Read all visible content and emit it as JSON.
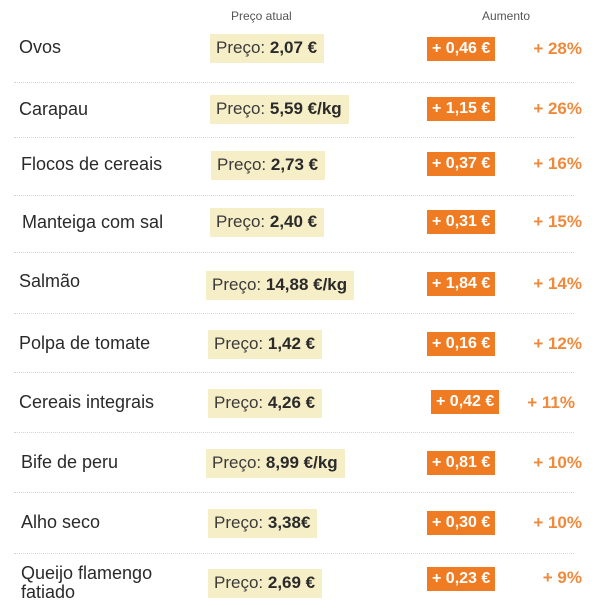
{
  "headers": {
    "price": "Preço atual",
    "increase": "Aumento"
  },
  "price_label": "Preço: ",
  "colors": {
    "price_bg": "#f6eec7",
    "increase_bg": "#ef7b22",
    "percent_text": "#ef8a3d"
  },
  "rows": [
    {
      "name": "Ovos",
      "price": "2,07 €",
      "increase": "+ 0,46 €",
      "percent": "+ 28%"
    },
    {
      "name": "Carapau",
      "price": "5,59 €/kg",
      "increase": "+ 1,15 €",
      "percent": "+ 26%"
    },
    {
      "name": "Flocos de cereais",
      "price": "2,73 €",
      "increase": "+ 0,37 €",
      "percent": "+ 16%"
    },
    {
      "name": "Manteiga com sal",
      "price": "2,40 €",
      "increase": "+ 0,31 €",
      "percent": "+ 15%"
    },
    {
      "name": "Salmão",
      "price": "14,88 €/kg",
      "increase": "+ 1,84 €",
      "percent": "+ 14%"
    },
    {
      "name": "Polpa de tomate",
      "price": "1,42 €",
      "increase": "+ 0,16 €",
      "percent": "+ 12%"
    },
    {
      "name": "Cereais integrais",
      "price": "4,26 €",
      "increase": "+ 0,42 €",
      "percent": "+ 11%"
    },
    {
      "name": "Bife de peru",
      "price": "8,99 €/kg",
      "increase": "+ 0,81 €",
      "percent": "+ 10%"
    },
    {
      "name": "Alho seco",
      "price": "3,38€",
      "increase": "+ 0,30 €",
      "percent": "+ 10%"
    },
    {
      "name": "Queijo flamengo fatiado",
      "price": "2,69 €",
      "increase": "+ 0,23 €",
      "percent": "+ 9%"
    }
  ]
}
